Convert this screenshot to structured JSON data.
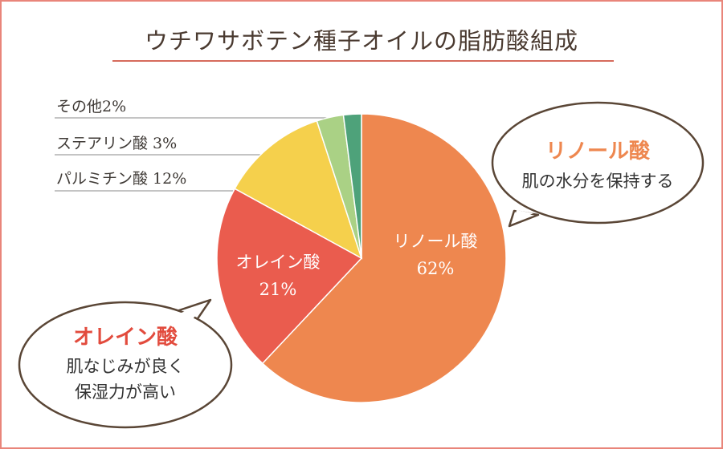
{
  "title": "ウチワサボテン種子オイルの脂肪酸組成",
  "colors": {
    "border": "#e9857a",
    "accent_line": "#d66b5c",
    "linoleic": "#ee874f",
    "oleic": "#ea5c4e",
    "palmitic": "#f5d04c",
    "stearic": "#aad185",
    "other": "#4ea27a",
    "linoleic_title": "#ee874f",
    "oleic_title": "#e24b3d"
  },
  "chart_data": {
    "type": "pie",
    "title": "ウチワサボテン種子オイルの脂肪酸組成",
    "slices": [
      {
        "label": "リノール酸",
        "value": 62,
        "value_label": "62%"
      },
      {
        "label": "オレイン酸",
        "value": 21,
        "value_label": "21%"
      },
      {
        "label": "パルミチン酸",
        "value": 12,
        "value_label": "12%"
      },
      {
        "label": "ステアリン酸",
        "value": 3,
        "value_label": "3%"
      },
      {
        "label": "その他",
        "value": 2,
        "value_label": "2%"
      }
    ],
    "side_labels": {
      "palmitic": "パルミチン酸 12%",
      "stearic": "ステアリン酸 3%",
      "other": "その他2%"
    }
  },
  "callouts": {
    "linoleic": {
      "title": "リノール酸",
      "lines": [
        "肌の水分を保持する"
      ]
    },
    "oleic": {
      "title": "オレイン酸",
      "lines": [
        "肌なじみが良く",
        "保湿力が高い"
      ]
    }
  }
}
